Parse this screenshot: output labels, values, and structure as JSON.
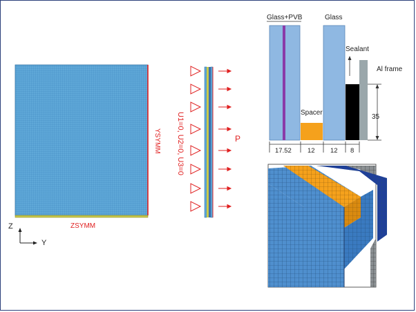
{
  "mesh_panel": {
    "ysymm_label": "YSYMM",
    "zsymm_label": "ZSYMM",
    "axis_z": "Z",
    "axis_y": "Y"
  },
  "section_model": {
    "boundary_label": "U1=0, U2=0, U3=0",
    "load_label": "P"
  },
  "cross_section": {
    "labels": {
      "glass_pvb": "Glass+PVB",
      "glass": "Glass",
      "sealant": "Sealant",
      "al_frame": "Al frame",
      "spacer": "Spacer"
    },
    "height_dim": "35",
    "widths": [
      "17.52",
      "12",
      "12",
      "8"
    ]
  },
  "colors": {
    "mesh_fill": "#5fa8d8",
    "glass": "#8fb8e2",
    "pvb": "#8a3aa8",
    "spacer": "#f5a11c",
    "sealant": "#000000",
    "al_frame": "#9aa7ab",
    "load": "#e02020",
    "base_plate": "#c8c84a",
    "panel_border": "#2a3f7a"
  }
}
